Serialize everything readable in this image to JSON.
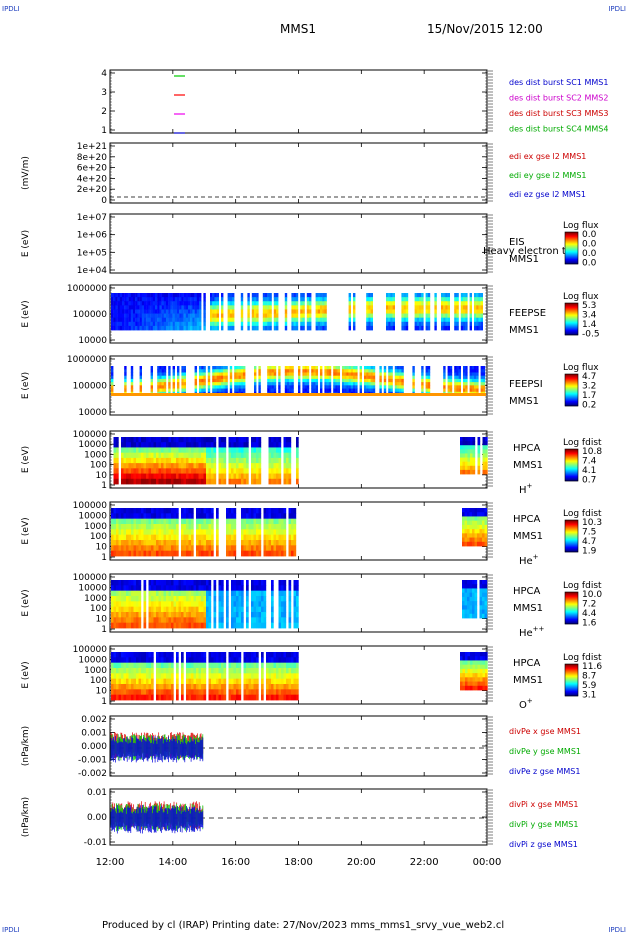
{
  "header": {
    "corner_label": "IPDLI",
    "spacecraft": "MMS1",
    "date_time": "15/Nov/2015 12:00"
  },
  "footer": {
    "text": "Produced by cl (IRAP)   Printing date: 27/Nov/2023   mms_mms1_srvy_vue_web2.cl"
  },
  "chart_data": [
    {
      "type": "line",
      "panel": "burst",
      "ylabel": "",
      "yticks": [
        "4",
        "3",
        "2",
        "1"
      ],
      "legend": [
        {
          "name": "des dist burst SC1 MMS1",
          "color": "#0000cc"
        },
        {
          "name": "des dist burst SC2 MMS2",
          "color": "#cc00cc"
        },
        {
          "name": "des dist burst SC3 MMS3",
          "color": "#cc0000"
        },
        {
          "name": "des dist burst SC4 MMS4",
          "color": "#00aa00"
        }
      ],
      "markers": [
        {
          "level": 4,
          "color": "#00cc00"
        },
        {
          "level": 3,
          "color": "#ff0000"
        },
        {
          "level": 2,
          "color": "#ee00ee"
        },
        {
          "level": 1,
          "color": "#0000cc"
        }
      ]
    },
    {
      "type": "line",
      "panel": "edi",
      "ylabel": "(mV/m)",
      "yticks": [
        "1e+21",
        "8e+20",
        "6e+20",
        "4e+20",
        "2e+20",
        "0"
      ],
      "legend": [
        {
          "name": "edi ex gse l2 MMS1",
          "color": "#cc0000"
        },
        {
          "name": "edi ey gse l2 MMS1",
          "color": "#00aa00"
        },
        {
          "name": "edi ez gse l2 MMS1",
          "color": "#0000cc"
        }
      ],
      "zero_line": true
    },
    {
      "type": "heatmap",
      "panel": "eis",
      "ylabel": "E (eV)",
      "yticks": [
        "1e+07",
        "1e+06",
        "1e+05",
        "1e+04"
      ],
      "label_lines": [
        "EIS",
        "MMS1"
      ],
      "overlay_text": "Heavy electron to",
      "colorbar_title": "Log flux",
      "colorbar_ticks": [
        "0.0",
        "0.0",
        "0.0",
        "0.0"
      ]
    },
    {
      "type": "heatmap",
      "panel": "feepse",
      "ylabel": "E (eV)",
      "yticks": [
        "1000000",
        "100000",
        "10000"
      ],
      "label_lines": [
        "FEEPSE",
        "MMS1"
      ],
      "colorbar_title": "Log flux",
      "colorbar_ticks": [
        "5.3",
        "3.4",
        "1.4",
        "-0.5"
      ]
    },
    {
      "type": "heatmap",
      "panel": "feepsi",
      "ylabel": "E (eV)",
      "yticks": [
        "1000000",
        "100000",
        "10000"
      ],
      "label_lines": [
        "FEEPSI",
        "MMS1"
      ],
      "colorbar_title": "Log flux",
      "colorbar_ticks": [
        "4.7",
        "3.2",
        "1.7",
        "0.2"
      ]
    },
    {
      "type": "heatmap",
      "panel": "hpca_h",
      "ylabel": "E (eV)",
      "yticks": [
        "100000",
        "10000",
        "1000",
        "100",
        "10",
        "1"
      ],
      "label_lines": [
        "HPCA",
        "MMS1",
        "H+"
      ],
      "colorbar_title": "Log fdist",
      "colorbar_ticks": [
        "10.8",
        "7.4",
        "4.1",
        "0.7"
      ]
    },
    {
      "type": "heatmap",
      "panel": "hpca_he",
      "ylabel": "E (eV)",
      "yticks": [
        "100000",
        "10000",
        "1000",
        "100",
        "10",
        "1"
      ],
      "label_lines": [
        "HPCA",
        "MMS1",
        "He+"
      ],
      "colorbar_title": "Log fdist",
      "colorbar_ticks": [
        "10.3",
        "7.5",
        "4.7",
        "1.9"
      ]
    },
    {
      "type": "heatmap",
      "panel": "hpca_hepp",
      "ylabel": "E (eV)",
      "yticks": [
        "100000",
        "10000",
        "1000",
        "100",
        "10",
        "1"
      ],
      "label_lines": [
        "HPCA",
        "MMS1",
        "He++"
      ],
      "colorbar_title": "Log fdist",
      "colorbar_ticks": [
        "10.0",
        "7.2",
        "4.4",
        "1.6"
      ]
    },
    {
      "type": "heatmap",
      "panel": "hpca_o",
      "ylabel": "E (eV)",
      "yticks": [
        "100000",
        "10000",
        "1000",
        "100",
        "10",
        "1"
      ],
      "label_lines": [
        "HPCA",
        "MMS1",
        "O+"
      ],
      "colorbar_title": "Log fdist",
      "colorbar_ticks": [
        "11.6",
        "8.7",
        "5.9",
        "3.1"
      ]
    },
    {
      "type": "line",
      "panel": "divpe",
      "ylabel": "(nPa/km)",
      "yticks": [
        "0.002",
        "0.001",
        "0.000",
        "-0.001",
        "-0.002"
      ],
      "legend": [
        {
          "name": "divPe x gse MMS1",
          "color": "#cc0000"
        },
        {
          "name": "divPe y gse MMS1",
          "color": "#00aa00"
        },
        {
          "name": "divPe z gse MMS1",
          "color": "#0000cc"
        }
      ],
      "zero_line": true
    },
    {
      "type": "line",
      "panel": "divpi",
      "ylabel": "(nPa/km)",
      "yticks": [
        "0.01",
        "0.00",
        "-0.01"
      ],
      "legend": [
        {
          "name": "divPi x gse MMS1",
          "color": "#cc0000"
        },
        {
          "name": "divPi y gse MMS1",
          "color": "#00aa00"
        },
        {
          "name": "divPi z gse MMS1",
          "color": "#0000cc"
        }
      ],
      "zero_line": true
    }
  ],
  "xaxis": {
    "ticks": [
      "12:00",
      "14:00",
      "16:00",
      "18:00",
      "20:00",
      "22:00",
      "00:00"
    ]
  }
}
